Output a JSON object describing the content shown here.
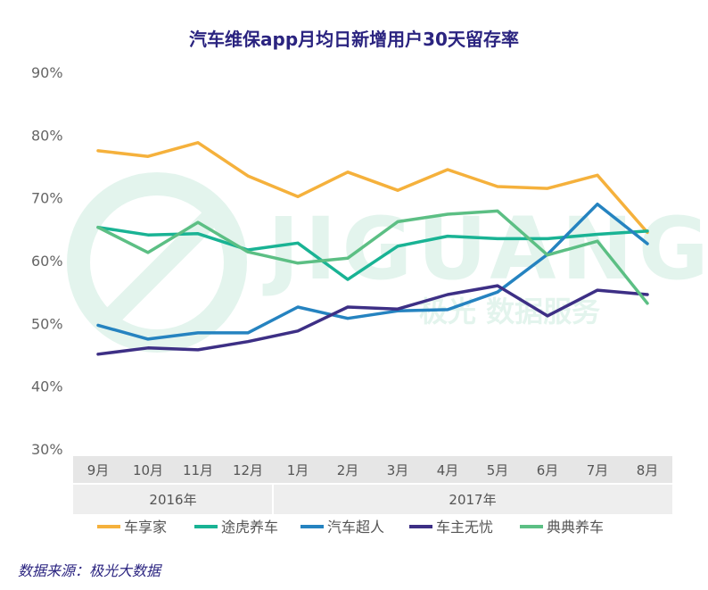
{
  "title": "汽车维保app月均日新增用户30天留存率",
  "source": "数据来源：极光大数据",
  "watermark": {
    "brand": "JIGUANG",
    "tagline": "极光 数据服务"
  },
  "chart_data": {
    "type": "line",
    "title": "汽车维保app月均日新增用户30天留存率",
    "categories": [
      "9月",
      "10月",
      "11月",
      "12月",
      "1月",
      "2月",
      "3月",
      "4月",
      "5月",
      "6月",
      "7月",
      "8月"
    ],
    "year_groups": [
      {
        "label": "2016年",
        "span": 4
      },
      {
        "label": "2017年",
        "span": 8
      }
    ],
    "ylim": [
      30,
      90
    ],
    "yticks": [
      30,
      40,
      50,
      60,
      70,
      80,
      90
    ],
    "ytick_labels": [
      "30%",
      "40%",
      "50%",
      "60%",
      "70%",
      "80%",
      "90%"
    ],
    "legend_position": "bottom",
    "series": [
      {
        "name": "车享家",
        "color": "#f5b13c",
        "values": [
          77.5,
          76.6,
          78.8,
          73.5,
          70.2,
          74.1,
          71.2,
          74.5,
          71.8,
          71.5,
          73.6,
          64.5
        ]
      },
      {
        "name": "途虎养车",
        "color": "#19b394",
        "values": [
          65.3,
          64.1,
          64.3,
          61.7,
          62.8,
          57.0,
          62.3,
          63.9,
          63.5,
          63.5,
          64.2,
          64.7
        ]
      },
      {
        "name": "汽车超人",
        "color": "#2583c0",
        "values": [
          49.7,
          47.5,
          48.5,
          48.5,
          52.6,
          50.8,
          52.0,
          52.2,
          55.0,
          61.0,
          69.0,
          62.7
        ]
      },
      {
        "name": "车主无忧",
        "color": "#3d2f85",
        "values": [
          45.1,
          46.1,
          45.8,
          47.1,
          48.8,
          52.6,
          52.3,
          54.6,
          56.0,
          51.2,
          55.3,
          54.6
        ]
      },
      {
        "name": "典典养车",
        "color": "#5cbf84",
        "values": [
          65.3,
          61.3,
          66.1,
          61.4,
          59.6,
          60.4,
          66.2,
          67.4,
          67.9,
          60.9,
          63.1,
          53.2
        ]
      }
    ]
  }
}
